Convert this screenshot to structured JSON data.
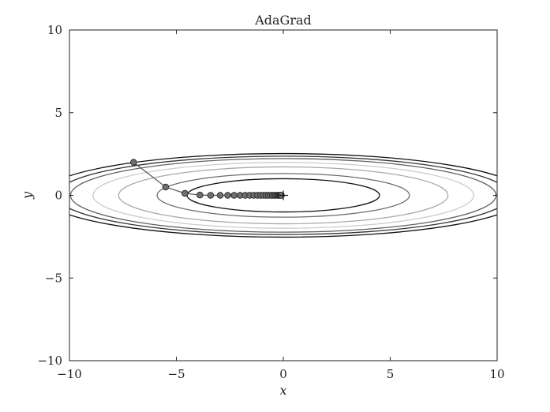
{
  "chart_data": {
    "type": "line",
    "title": "AdaGrad",
    "xlabel": "x",
    "ylabel": "y",
    "xlim": [
      -10,
      10
    ],
    "ylim": [
      -10,
      10
    ],
    "xticks": [
      -10,
      -5,
      0,
      5,
      10
    ],
    "yticks": [
      -10,
      -5,
      0,
      5,
      10
    ],
    "xtick_labels": [
      "−10",
      "−5",
      "0",
      "5",
      "10"
    ],
    "ytick_labels": [
      "−10",
      "−5",
      "0",
      "5",
      "10"
    ],
    "grid": false,
    "center_marker": "+",
    "contours": {
      "function": "x^2/20 + y^2",
      "levels": [
        {
          "a": 4.5,
          "color": "#111111"
        },
        {
          "a": 5.9,
          "color": "#6b6b6b"
        },
        {
          "a": 7.7,
          "color": "#a8a8a8"
        },
        {
          "a": 8.9,
          "color": "#cccccc"
        },
        {
          "a": 9.95,
          "color": "#606060"
        },
        {
          "a": 10.6,
          "color": "#333333"
        },
        {
          "a": 11.3,
          "color": "#111111"
        }
      ]
    },
    "series": [
      {
        "x": [
          -7.0,
          -5.5,
          -4.6,
          -3.9,
          -3.4,
          -2.95,
          -2.6,
          -2.3,
          -2.02,
          -1.78,
          -1.57,
          -1.38,
          -1.21,
          -1.06,
          -0.93,
          -0.81,
          -0.7,
          -0.6,
          -0.51,
          -0.43,
          -0.36,
          -0.3,
          -0.24,
          -0.19,
          -0.15,
          -0.12,
          -0.09
        ],
        "y": [
          2.0,
          0.5,
          0.12,
          0.02,
          0.0,
          0.0,
          0.0,
          0.0,
          0.0,
          0.0,
          0.0,
          0.0,
          0.0,
          0.0,
          0.0,
          0.0,
          0.0,
          0.0,
          0.0,
          0.0,
          0.0,
          0.0,
          0.0,
          0.0,
          0.0,
          0.0,
          0.0
        ]
      }
    ]
  }
}
